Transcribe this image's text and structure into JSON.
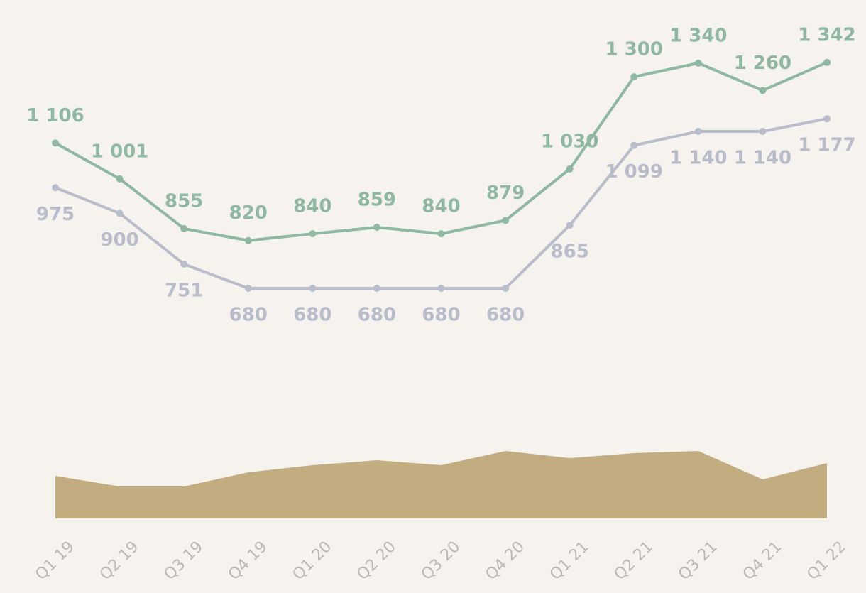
{
  "chart_data": [
    {
      "type": "line",
      "categories": [
        "Q1 19",
        "Q2 19",
        "Q3 19",
        "Q4 19",
        "Q1 20",
        "Q2 20",
        "Q3 20",
        "Q4 20",
        "Q1 21",
        "Q2 21",
        "Q3 21",
        "Q4 21",
        "Q1 22"
      ],
      "ylim": [
        500,
        1500
      ],
      "series": [
        {
          "color": "#8fb8a0",
          "values": [
            1106,
            1001,
            855,
            820,
            840,
            859,
            840,
            879,
            1030,
            1300,
            1340,
            1260,
            1342
          ],
          "value_labels": [
            "1 106",
            "1 001",
            "855",
            "820",
            "840",
            "859",
            "840",
            "879",
            "1 030",
            "1 300",
            "1 340",
            "1 260",
            "1 342"
          ]
        },
        {
          "color": "#b8bccb",
          "values": [
            975,
            900,
            751,
            680,
            680,
            680,
            680,
            680,
            865,
            1099,
            1140,
            1140,
            1177
          ],
          "value_labels": [
            "975",
            "900",
            "751",
            "680",
            "680",
            "680",
            "680",
            "680",
            "865",
            "1 099",
            "1 140",
            "1 140",
            "1 177"
          ]
        }
      ]
    },
    {
      "type": "area",
      "color": "#c2ad80",
      "ylim": [
        0,
        100
      ],
      "values": [
        60,
        45,
        45,
        65,
        75,
        82,
        75,
        95,
        85,
        92,
        95,
        55,
        78
      ]
    }
  ]
}
